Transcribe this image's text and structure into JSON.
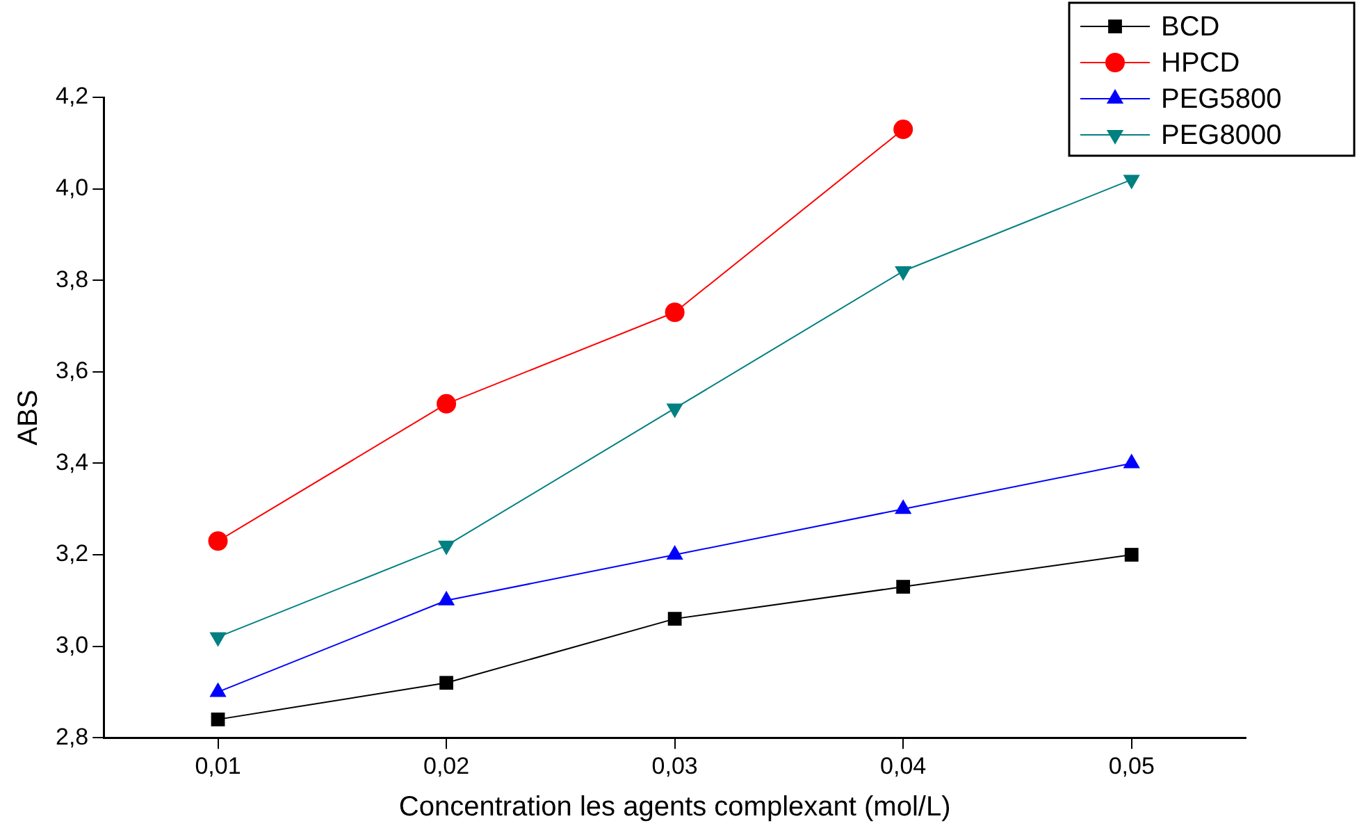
{
  "chart_data": {
    "type": "line",
    "xlabel": "Concentration les agents complexant (mol/L)",
    "ylabel": "ABS",
    "x": [
      0.01,
      0.02,
      0.03,
      0.04,
      0.05
    ],
    "series": [
      {
        "name": "BCD",
        "color": "#000000",
        "marker": "square",
        "values": [
          2.84,
          2.92,
          3.06,
          3.13,
          3.2
        ]
      },
      {
        "name": "HPCD",
        "color": "#ff0000",
        "marker": "circle",
        "values": [
          3.23,
          3.53,
          3.73,
          4.13,
          null
        ]
      },
      {
        "name": "PEG5800",
        "color": "#0000ff",
        "marker": "triangle",
        "values": [
          2.9,
          3.1,
          3.2,
          3.3,
          3.4
        ]
      },
      {
        "name": "PEG8000",
        "color": "#008080",
        "marker": "triangle-down",
        "values": [
          3.02,
          3.22,
          3.52,
          3.82,
          4.02
        ]
      }
    ],
    "xlim": [
      0.005,
      0.055
    ],
    "xticks": [
      {
        "value": 0.01,
        "label": "0,01"
      },
      {
        "value": 0.02,
        "label": "0,02"
      },
      {
        "value": 0.03,
        "label": "0,03"
      },
      {
        "value": 0.04,
        "label": "0,04"
      },
      {
        "value": 0.05,
        "label": "0,05"
      }
    ],
    "ylim": [
      2.8,
      4.2
    ],
    "yticks": [
      {
        "value": 2.8,
        "label": "2,8"
      },
      {
        "value": 3.0,
        "label": "3,0"
      },
      {
        "value": 3.2,
        "label": "3,2"
      },
      {
        "value": 3.4,
        "label": "3,4"
      },
      {
        "value": 3.6,
        "label": "3,6"
      },
      {
        "value": 3.8,
        "label": "3,8"
      },
      {
        "value": 4.0,
        "label": "4,0"
      },
      {
        "value": 4.2,
        "label": "4,2"
      }
    ],
    "grid": false,
    "legend": "top right",
    "line_style": "solid"
  }
}
